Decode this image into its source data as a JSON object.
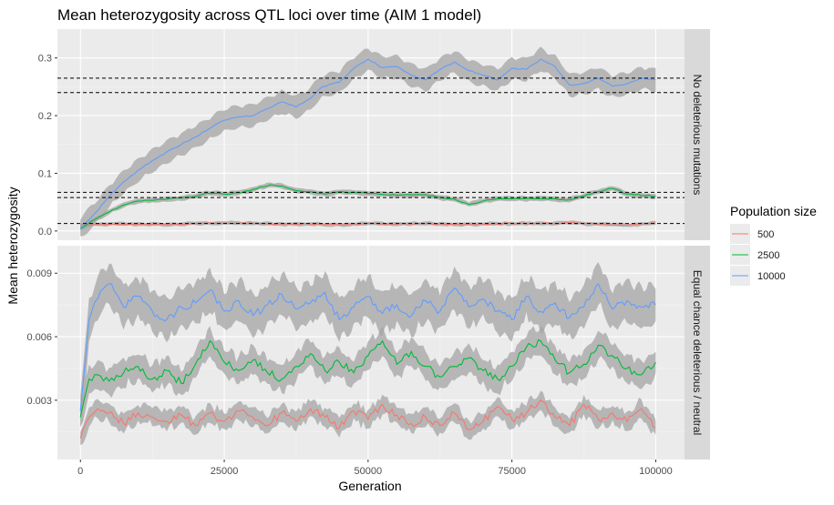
{
  "chart_data": {
    "type": "line",
    "title": "Mean heterozygosity across QTL loci over time (AIM 1 model)",
    "xlabel": "Generation",
    "ylabel": "Mean heterozygosity",
    "xlim": [
      -4000,
      105000
    ],
    "x_ticks": [
      "0",
      "25000",
      "50000",
      "75000",
      "100000"
    ],
    "legend": {
      "title": "Population size",
      "position": "right",
      "entries": [
        {
          "label": "500",
          "color": "#F8766D"
        },
        {
          "label": "2500",
          "color": "#00BA38"
        },
        {
          "label": "10000",
          "color": "#619CFF"
        }
      ]
    },
    "band_color": "#a6a6a6",
    "panels": [
      {
        "strip": "No deleterious mutations",
        "ylim": [
          -0.016,
          0.35
        ],
        "y_ticks": [
          "0.0",
          "0.1",
          "0.2",
          "0.3"
        ],
        "reference_lines": [
          0.013,
          0.058,
          0.067,
          0.24,
          0.265
        ],
        "series": [
          {
            "name": "500",
            "x": [
              0,
              5000,
              10000,
              15000,
              20000,
              25000,
              30000,
              35000,
              40000,
              45000,
              50000,
              55000,
              60000,
              65000,
              70000,
              75000,
              80000,
              85000,
              90000,
              95000,
              100000
            ],
            "y": [
              0.01,
              0.012,
              0.012,
              0.011,
              0.013,
              0.014,
              0.013,
              0.012,
              0.012,
              0.011,
              0.013,
              0.012,
              0.013,
              0.011,
              0.012,
              0.013,
              0.013,
              0.014,
              0.012,
              0.01,
              0.014
            ],
            "band": 0.003
          },
          {
            "name": "2500",
            "x": [
              0,
              2500,
              5000,
              7500,
              10000,
              15000,
              20000,
              22000,
              25000,
              27500,
              30000,
              33000,
              35000,
              37500,
              40000,
              42500,
              45000,
              50000,
              55000,
              60000,
              62500,
              65000,
              67500,
              70000,
              72500,
              75000,
              80000,
              85000,
              90000,
              92500,
              95000,
              100000
            ],
            "y": [
              0.004,
              0.02,
              0.033,
              0.045,
              0.052,
              0.055,
              0.06,
              0.066,
              0.064,
              0.066,
              0.072,
              0.08,
              0.078,
              0.07,
              0.068,
              0.064,
              0.068,
              0.065,
              0.062,
              0.063,
              0.058,
              0.055,
              0.046,
              0.052,
              0.056,
              0.056,
              0.056,
              0.054,
              0.068,
              0.074,
              0.064,
              0.06
            ],
            "band": 0.004
          },
          {
            "name": "10000",
            "x": [
              0,
              2500,
              5000,
              7500,
              10000,
              12500,
              15000,
              17500,
              20000,
              22500,
              25000,
              27500,
              30000,
              32500,
              35000,
              37500,
              40000,
              42000,
              45000,
              47500,
              50000,
              52500,
              55000,
              57500,
              60000,
              62500,
              65000,
              67500,
              70000,
              72500,
              75000,
              77500,
              80000,
              82500,
              85000,
              87500,
              90000,
              92500,
              95000,
              97500,
              100000
            ],
            "y": [
              0.005,
              0.03,
              0.06,
              0.085,
              0.105,
              0.122,
              0.137,
              0.15,
              0.163,
              0.178,
              0.192,
              0.198,
              0.2,
              0.212,
              0.224,
              0.215,
              0.23,
              0.25,
              0.258,
              0.282,
              0.298,
              0.283,
              0.285,
              0.27,
              0.262,
              0.28,
              0.293,
              0.278,
              0.27,
              0.262,
              0.282,
              0.28,
              0.298,
              0.285,
              0.253,
              0.256,
              0.265,
              0.251,
              0.255,
              0.265,
              0.262
            ],
            "band": 0.018
          }
        ]
      },
      {
        "strip": "Equal chance deleterious / neutral",
        "ylim": [
          0.0002,
          0.0103
        ],
        "y_ticks": [
          "0.003",
          "0.006",
          "0.009"
        ],
        "y_tick_values": [
          0.003,
          0.006,
          0.009
        ],
        "series": [
          {
            "name": "500",
            "x": [
              0,
              1500,
              3000,
              5000,
              7500,
              10000,
              12500,
              15000,
              17500,
              20000,
              22500,
              25000,
              27500,
              30000,
              32500,
              35000,
              37500,
              40000,
              42500,
              45000,
              47500,
              50000,
              52500,
              55000,
              57500,
              60000,
              62500,
              65000,
              67500,
              70000,
              72500,
              75000,
              77500,
              80000,
              82500,
              85000,
              87500,
              90000,
              92500,
              95000,
              97500,
              100000
            ],
            "y": [
              0.0012,
              0.0022,
              0.0026,
              0.0024,
              0.0019,
              0.0024,
              0.0022,
              0.002,
              0.0023,
              0.0018,
              0.0024,
              0.002,
              0.0025,
              0.0022,
              0.0018,
              0.0024,
              0.002,
              0.0026,
              0.0022,
              0.0017,
              0.0025,
              0.0021,
              0.0028,
              0.0023,
              0.0019,
              0.0022,
              0.0018,
              0.0024,
              0.0016,
              0.002,
              0.0027,
              0.0021,
              0.0024,
              0.003,
              0.0022,
              0.0018,
              0.0028,
              0.0021,
              0.0024,
              0.002,
              0.0026,
              0.0017
            ],
            "band": 0.0004
          },
          {
            "name": "2500",
            "x": [
              0,
              1500,
              3000,
              5000,
              7500,
              10000,
              12500,
              15000,
              17500,
              20000,
              22500,
              25000,
              27500,
              30000,
              32500,
              35000,
              37500,
              40000,
              42500,
              45000,
              47500,
              50000,
              52500,
              55000,
              57500,
              60000,
              62500,
              65000,
              67500,
              70000,
              72500,
              75000,
              77500,
              80000,
              82500,
              85000,
              87500,
              90000,
              92500,
              95000,
              97500,
              100000
            ],
            "y": [
              0.0022,
              0.004,
              0.0042,
              0.0039,
              0.0043,
              0.0046,
              0.004,
              0.0044,
              0.0038,
              0.0047,
              0.0058,
              0.0048,
              0.0044,
              0.0049,
              0.0043,
              0.004,
              0.0046,
              0.0052,
              0.0044,
              0.0048,
              0.0043,
              0.0051,
              0.0058,
              0.0047,
              0.0053,
              0.0046,
              0.0041,
              0.0046,
              0.005,
              0.0044,
              0.004,
              0.0046,
              0.0055,
              0.0058,
              0.0049,
              0.0043,
              0.0047,
              0.0056,
              0.0051,
              0.0045,
              0.0042,
              0.0048
            ],
            "band": 0.0006
          },
          {
            "name": "10000",
            "x": [
              0,
              1500,
              3000,
              5000,
              7500,
              10000,
              12500,
              15000,
              17500,
              20000,
              22500,
              25000,
              27500,
              30000,
              32500,
              35000,
              37500,
              40000,
              42500,
              45000,
              47500,
              50000,
              52500,
              55000,
              57500,
              60000,
              62500,
              65000,
              67500,
              70000,
              72500,
              75000,
              77500,
              80000,
              82500,
              85000,
              87500,
              90000,
              92500,
              95000,
              97500,
              100000
            ],
            "y": [
              0.0025,
              0.0068,
              0.0078,
              0.0085,
              0.0074,
              0.0079,
              0.0072,
              0.0068,
              0.0074,
              0.0076,
              0.0082,
              0.0072,
              0.0077,
              0.007,
              0.0075,
              0.008,
              0.0073,
              0.0076,
              0.0081,
              0.0068,
              0.0074,
              0.0079,
              0.0071,
              0.0075,
              0.007,
              0.0077,
              0.0072,
              0.0083,
              0.0074,
              0.0078,
              0.0072,
              0.0068,
              0.0079,
              0.0072,
              0.0076,
              0.0069,
              0.0074,
              0.0085,
              0.0073,
              0.0077,
              0.0074,
              0.0075
            ],
            "band": 0.0009
          }
        ]
      }
    ]
  }
}
